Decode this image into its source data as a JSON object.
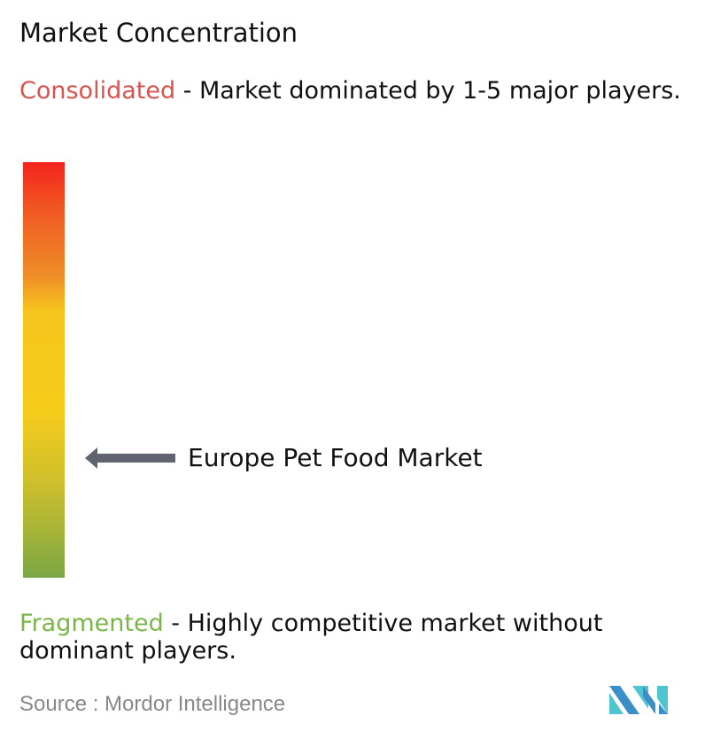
{
  "title": "Market Concentration",
  "consolidated": {
    "label": "Consolidated",
    "description": " - Market dominated by 1-5 major players.",
    "color": "#d9534f"
  },
  "fragmented": {
    "label": "Fragmented",
    "description": " - Highly competitive market without dominant players.",
    "color": "#7ab648"
  },
  "marker": {
    "label": "Europe Pet Food Market",
    "level_fraction_from_bottom": 0.29,
    "arrow_color": "#5f6470"
  },
  "gradient_colors": [
    "#f4231d",
    "#ef8c28",
    "#f5c91c",
    "#7ba646"
  ],
  "source": "Source :  Mordor Intelligence",
  "logo": {
    "name": "mordor-intelligence-logo",
    "colors": [
      "#3a8fc8",
      "#4fc6cf"
    ]
  }
}
